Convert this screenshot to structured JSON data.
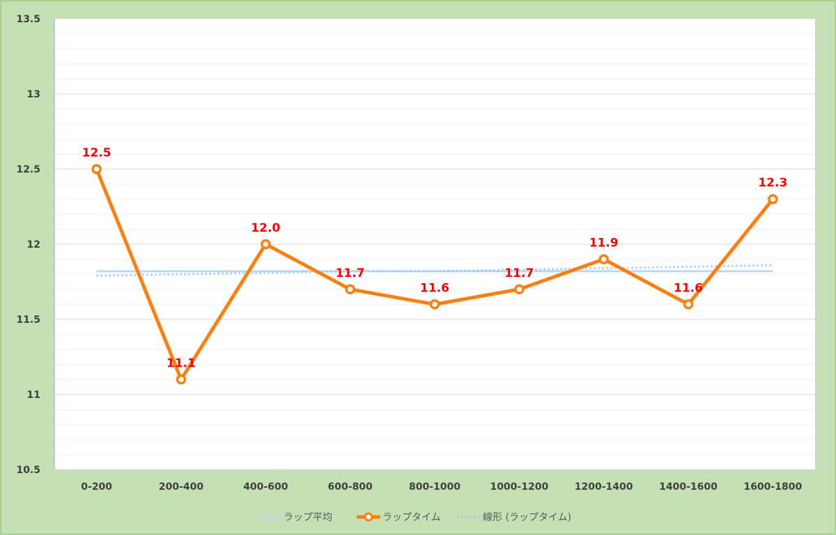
{
  "chart_data": {
    "type": "line",
    "categories": [
      "0-200",
      "200-400",
      "400-600",
      "600-800",
      "800-1000",
      "1000-1200",
      "1200-1400",
      "1400-1600",
      "1600-1800"
    ],
    "ylim": [
      10.5,
      13.5
    ],
    "y_ticks": [
      "10.5",
      "11",
      "11.5",
      "12",
      "12.5",
      "13",
      "13.5"
    ],
    "grid": true,
    "legend_position": "bottom",
    "series": [
      {
        "name": "ラップタイム",
        "values": [
          12.5,
          11.1,
          12.0,
          11.7,
          11.6,
          11.7,
          11.9,
          11.6,
          12.3
        ],
        "labels": [
          "12.5",
          "11.1",
          "12.0",
          "11.7",
          "11.6",
          "11.7",
          "11.9",
          "11.6",
          "12.3"
        ],
        "color": "#ff7f0e"
      },
      {
        "name": "ラップ平均",
        "values": [
          11.82,
          11.82,
          11.82,
          11.82,
          11.82,
          11.82,
          11.82,
          11.82,
          11.82
        ],
        "color": "#bdd7ee"
      },
      {
        "name": "線形 (ラップタイム)",
        "values": [
          11.79,
          11.8,
          11.81,
          11.82,
          11.82,
          11.83,
          11.84,
          11.85,
          11.86
        ],
        "color": "#9dc3e6"
      }
    ],
    "label_color": "#ff0000"
  }
}
